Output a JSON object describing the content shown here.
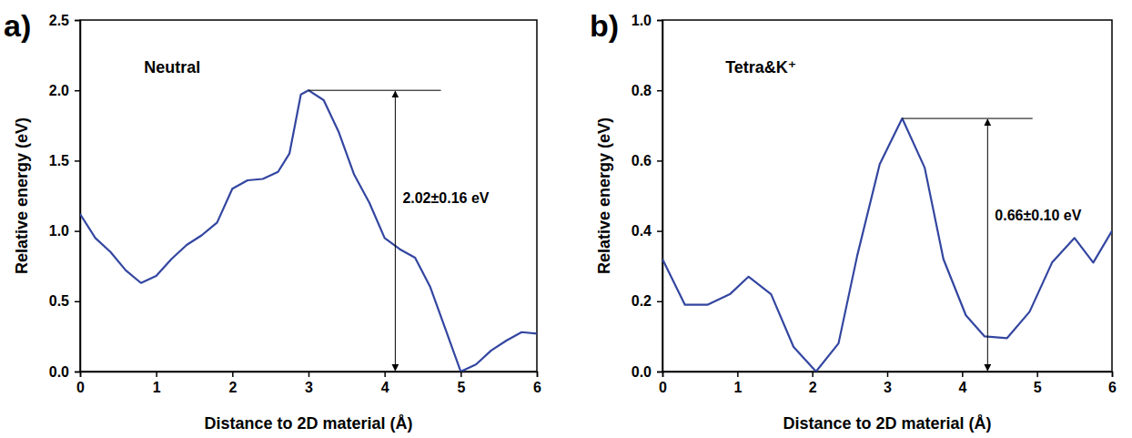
{
  "chart_data": [
    {
      "type": "line",
      "panel_label": "a)",
      "annotations": [
        {
          "text": "Neutral"
        },
        {
          "text": "2.02±0.16 eV"
        }
      ],
      "x_label": "Distance to 2D material (Å)",
      "y_label": "Relative energy (eV)",
      "x": [
        0,
        0.2,
        0.4,
        0.6,
        0.8,
        1.0,
        1.2,
        1.4,
        1.6,
        1.8,
        2.0,
        2.2,
        2.4,
        2.6,
        2.75,
        2.9,
        3.0,
        3.2,
        3.4,
        3.6,
        3.8,
        4.0,
        4.2,
        4.4,
        4.6,
        4.8,
        5.0,
        5.2,
        5.4,
        5.6,
        5.8,
        6.0
      ],
      "series": [
        {
          "color": "#3346a0",
          "values": [
            1.12,
            0.95,
            0.85,
            0.72,
            0.63,
            0.68,
            0.8,
            0.9,
            0.97,
            1.06,
            1.3,
            1.36,
            1.37,
            1.42,
            1.55,
            1.97,
            2.0,
            1.93,
            1.7,
            1.4,
            1.2,
            0.95,
            0.87,
            0.81,
            0.6,
            0.3,
            0.0,
            0.05,
            0.15,
            0.22,
            0.28,
            0.27
          ]
        }
      ],
      "xlim": [
        0,
        6
      ],
      "xticks": [
        0,
        1,
        2,
        3,
        4,
        5,
        6
      ],
      "ylim": [
        0,
        2.5
      ],
      "yticks": [
        {
          "value": 0,
          "label": "0.0"
        },
        0.5,
        {
          "value": 1,
          "label": "1.0"
        },
        1.5,
        {
          "value": 2,
          "label": "2.0"
        },
        2.5
      ],
      "grid": false
    },
    {
      "type": "line",
      "panel_label": "b)",
      "annotations": [
        {
          "text": "Tetra&K⁺"
        },
        {
          "text": "0.66±0.10 eV"
        }
      ],
      "x_label": "Distance to 2D material (Å)",
      "y_label": "Relative energy (eV)",
      "x": [
        0,
        0.3,
        0.6,
        0.9,
        1.15,
        1.45,
        1.75,
        2.05,
        2.35,
        2.6,
        2.9,
        3.2,
        3.5,
        3.75,
        4.05,
        4.3,
        4.6,
        4.9,
        5.2,
        5.5,
        5.75,
        6.0
      ],
      "series": [
        {
          "color": "#3346a0",
          "values": [
            0.32,
            0.19,
            0.19,
            0.22,
            0.27,
            0.22,
            0.07,
            0.0,
            0.08,
            0.33,
            0.59,
            0.72,
            0.58,
            0.32,
            0.16,
            0.1,
            0.095,
            0.17,
            0.31,
            0.38,
            0.31,
            0.4
          ]
        }
      ],
      "xlim": [
        0,
        6
      ],
      "xticks": [
        0,
        1,
        2,
        3,
        4,
        5,
        6
      ],
      "ylim": [
        0,
        1
      ],
      "yticks": [
        {
          "value": 0,
          "label": "0.0"
        },
        0.2,
        0.4,
        0.6,
        0.8,
        {
          "value": 1,
          "label": "1.0"
        }
      ],
      "grid": false
    }
  ]
}
